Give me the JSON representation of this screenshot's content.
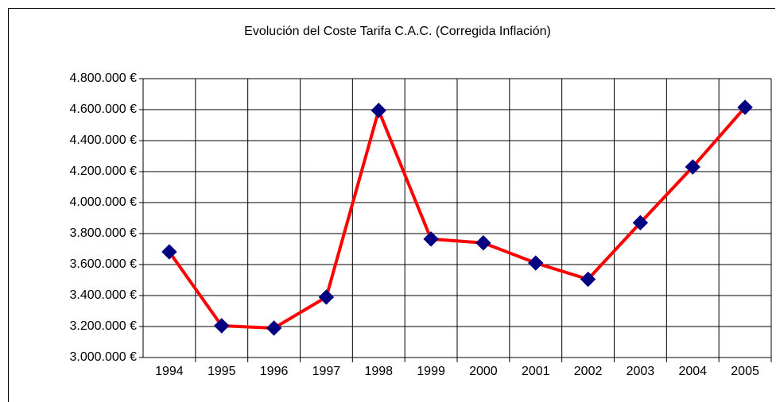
{
  "chart_data": {
    "type": "line",
    "title": "Evolución del Coste Tarifa C.A.C. (Corregida Inflación)",
    "categories": [
      "1994",
      "1995",
      "1996",
      "1997",
      "1998",
      "1999",
      "2000",
      "2001",
      "2002",
      "2003",
      "2004",
      "2005"
    ],
    "series": [
      {
        "name": "Coste Tarifa C.A.C.",
        "color": "#ff0000",
        "marker_color": "#000080",
        "values": [
          3682000,
          3205000,
          3190000,
          3390000,
          4595000,
          3765000,
          3740000,
          3610000,
          3505000,
          3870000,
          4230000,
          4615000
        ]
      }
    ],
    "ylim": [
      3000000,
      4800000
    ],
    "yticks": [
      {
        "value": 3000000,
        "label": "3.000.000 €"
      },
      {
        "value": 3200000,
        "label": "3.200.000 €"
      },
      {
        "value": 3400000,
        "label": "3.400.000 €"
      },
      {
        "value": 3600000,
        "label": "3.600.000 €"
      },
      {
        "value": 3800000,
        "label": "3.800.000 €"
      },
      {
        "value": 4000000,
        "label": "4.000.000 €"
      },
      {
        "value": 4200000,
        "label": "4.200.000 €"
      },
      {
        "value": 4400000,
        "label": "4.400.000 €"
      },
      {
        "value": 4600000,
        "label": "4.600.000 €"
      },
      {
        "value": 4800000,
        "label": "4.800.000 €"
      }
    ],
    "grid": true
  }
}
